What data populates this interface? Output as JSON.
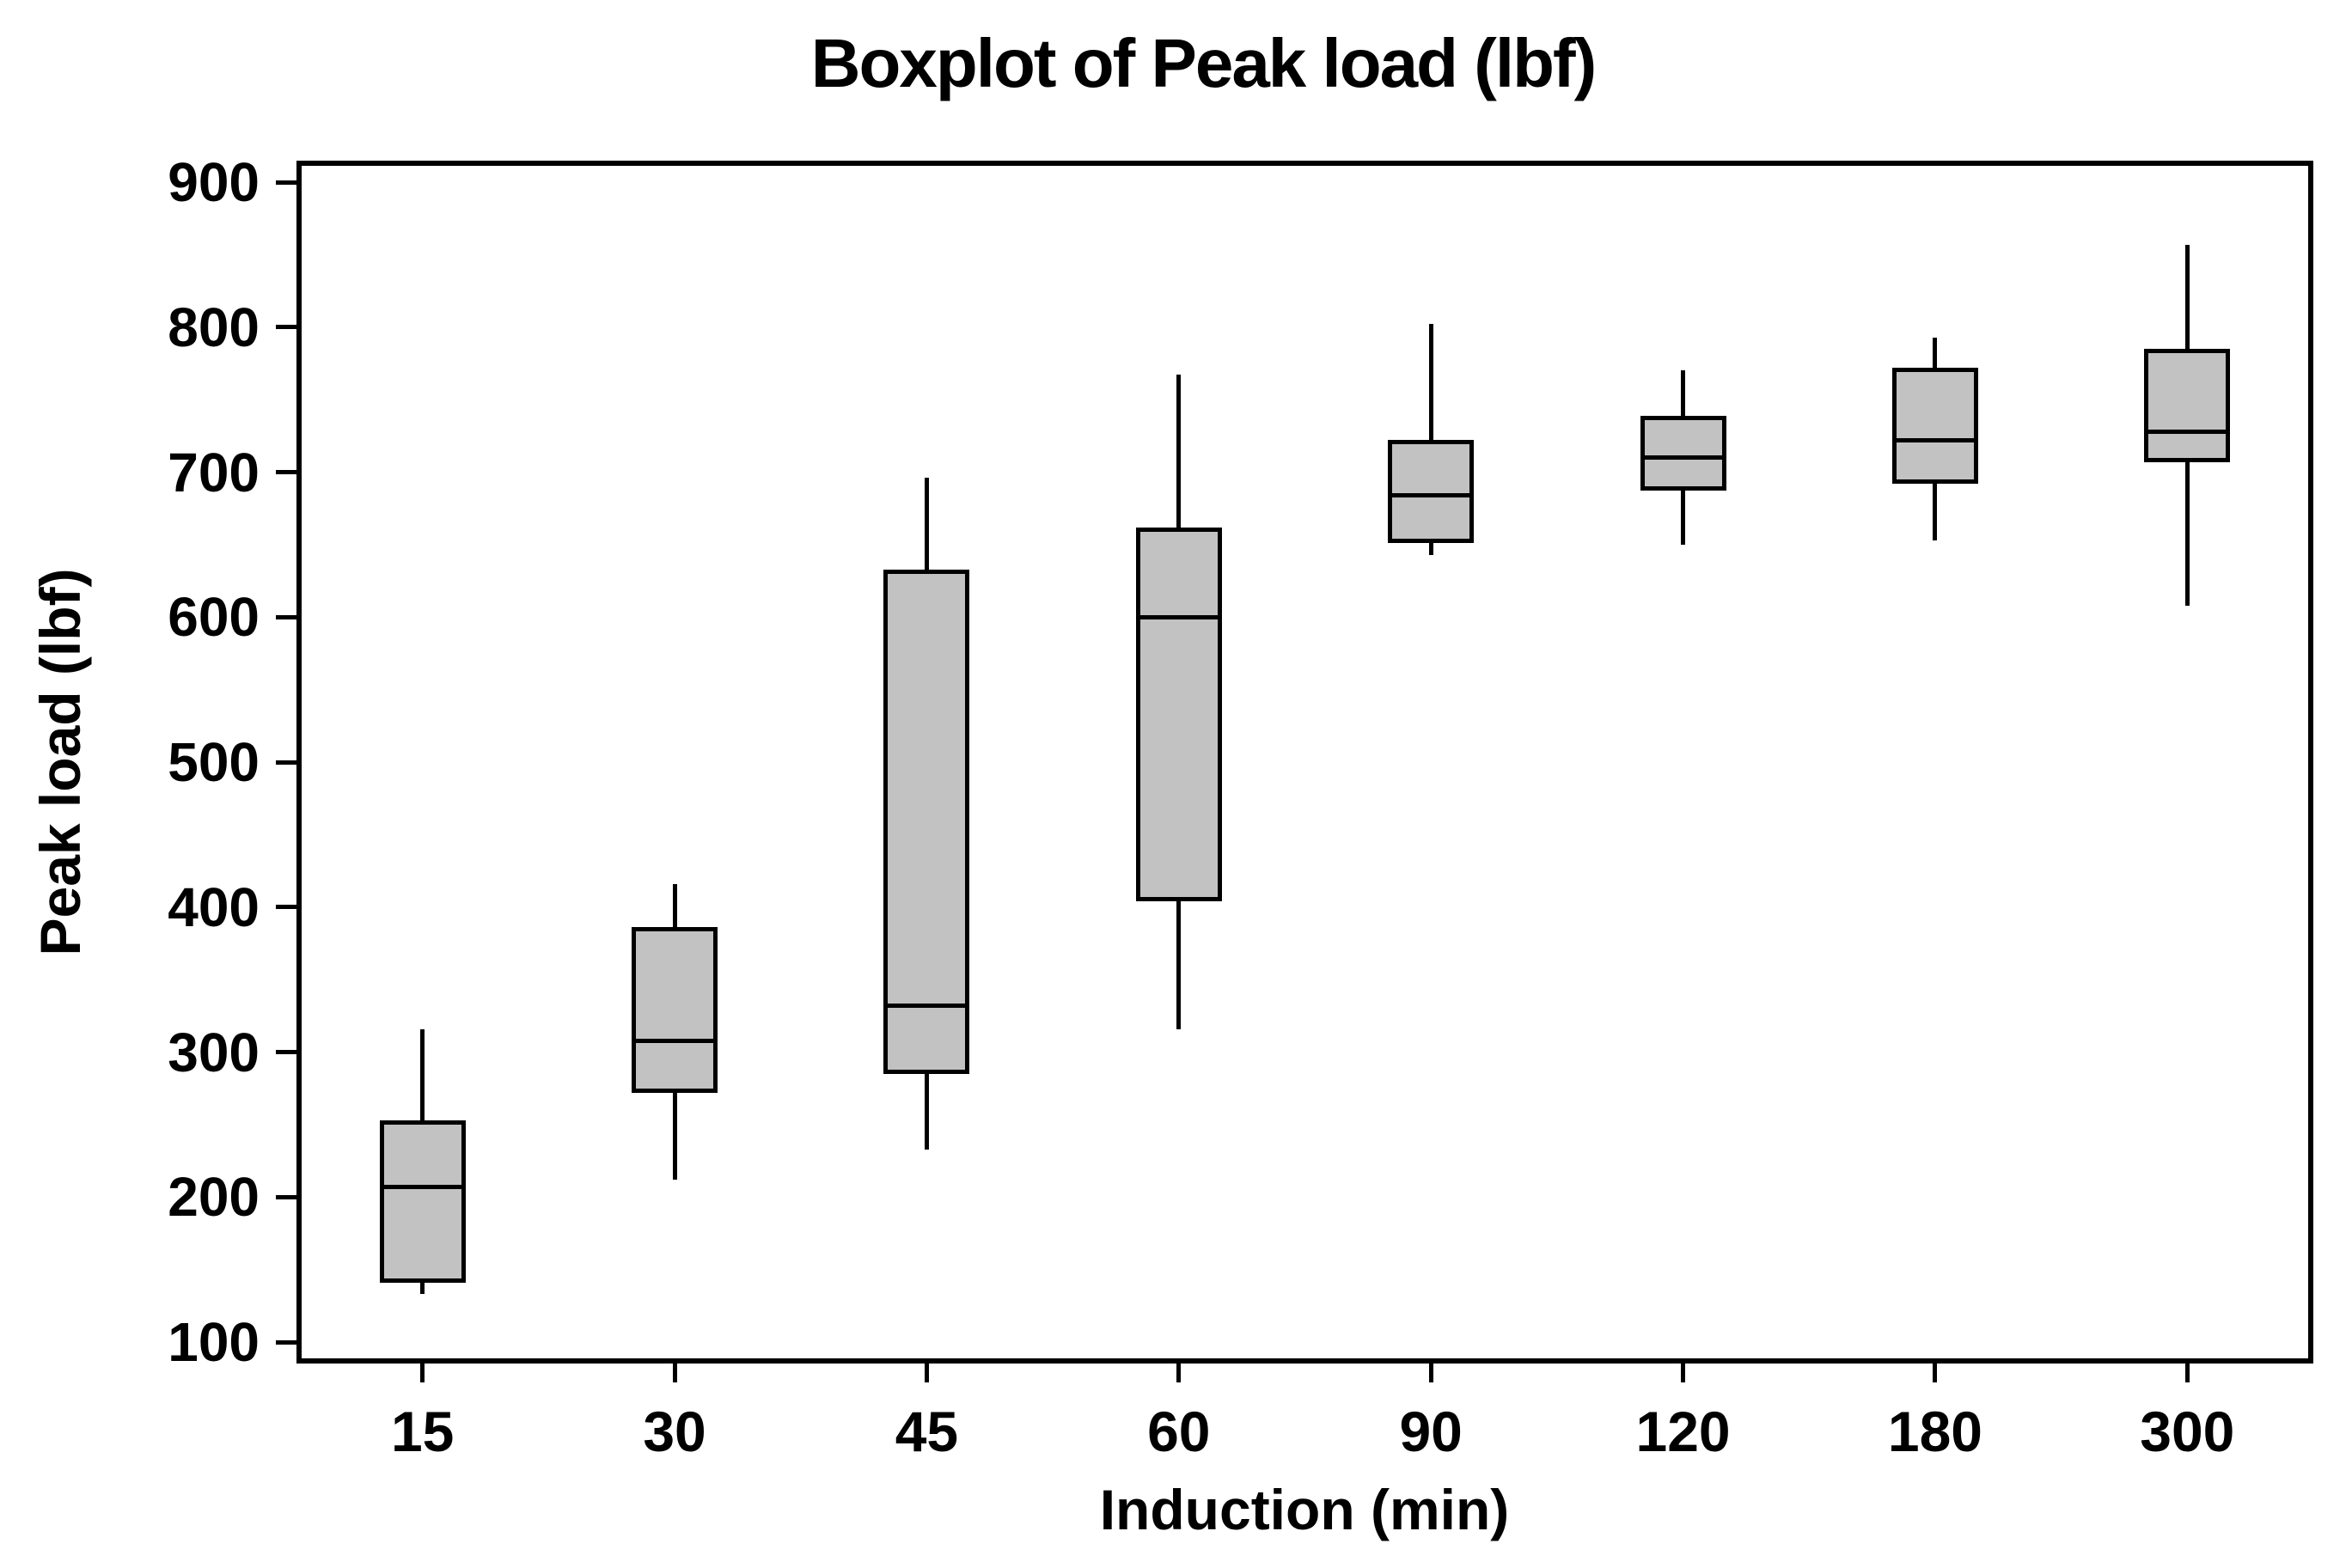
{
  "title": "Boxplot of Peak load (lbf)",
  "y_axis": {
    "label": "Peak load (lbf)",
    "tick_labels": [
      "100",
      "200",
      "300",
      "400",
      "500",
      "600",
      "700",
      "800",
      "900"
    ]
  },
  "x_axis": {
    "label": "Induction (min)",
    "tick_labels": [
      "15",
      "30",
      "45",
      "60",
      "90",
      "120",
      "180",
      "300"
    ]
  },
  "colors": {
    "box_fill": "#c2c2c2",
    "box_border": "#000000",
    "axis_color": "#000000",
    "background": "#ffffff",
    "text_color": "#000000"
  },
  "chart_data": {
    "type": "boxplot",
    "title": "Boxplot of Peak load (lbf)",
    "xlabel": "Induction (min)",
    "ylabel": "Peak load (lbf)",
    "categories": [
      "15",
      "30",
      "45",
      "60",
      "90",
      "120",
      "180",
      "300"
    ],
    "ylim": [
      100,
      900
    ],
    "y_ticks": [
      100,
      200,
      300,
      400,
      500,
      600,
      700,
      800,
      900
    ],
    "grid": false,
    "legend": false,
    "series": [
      {
        "category": "15",
        "min": 133,
        "q1": 141,
        "median": 207,
        "q3": 253,
        "max": 316
      },
      {
        "category": "30",
        "min": 212,
        "q1": 272,
        "median": 308,
        "q3": 386,
        "max": 416
      },
      {
        "category": "45",
        "min": 233,
        "q1": 285,
        "median": 332,
        "q3": 633,
        "max": 696
      },
      {
        "category": "60",
        "min": 316,
        "q1": 404,
        "median": 600,
        "q3": 662,
        "max": 767
      },
      {
        "category": "90",
        "min": 643,
        "q1": 651,
        "median": 684,
        "q3": 722,
        "max": 802
      },
      {
        "category": "120",
        "min": 650,
        "q1": 687,
        "median": 710,
        "q3": 739,
        "max": 770
      },
      {
        "category": "180",
        "min": 653,
        "q1": 692,
        "median": 722,
        "q3": 772,
        "max": 793
      },
      {
        "category": "300",
        "min": 608,
        "q1": 707,
        "median": 728,
        "q3": 785,
        "max": 857
      }
    ]
  }
}
